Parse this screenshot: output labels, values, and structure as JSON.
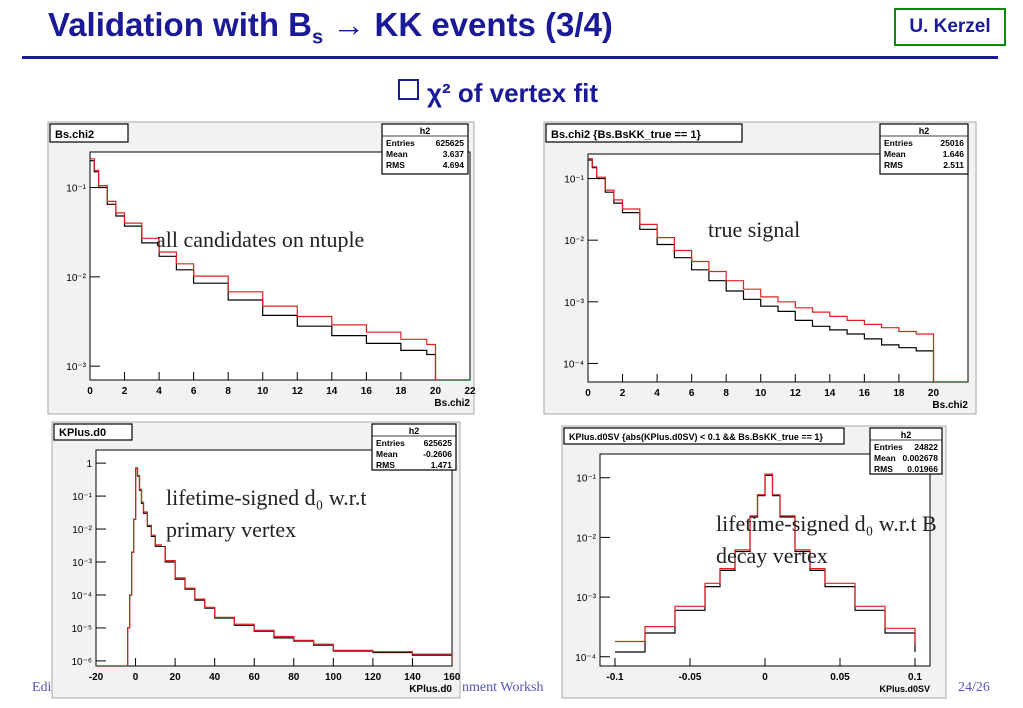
{
  "title": {
    "main": "Validation with B",
    "sub": "s",
    "rest": " → KK events (3/4)"
  },
  "author": "U. Kerzel",
  "subheading": {
    "text": "χ² of vertex fit"
  },
  "footer": {
    "left": "Edi",
    "center": "nment Worksh",
    "page": "24/26"
  },
  "colors": {
    "title": "#1a1a99",
    "author_border": "#0b8a0b",
    "hist_black": "#000000",
    "hist_red": "#e02020",
    "frame_bg": "#f2f2f2"
  },
  "chart_data": [
    {
      "type": "line",
      "title": "Bs.chi2",
      "xlabel": "Bs.chi2",
      "xlim": [
        0,
        22
      ],
      "ylim": [
        0.0007,
        0.25
      ],
      "yscale": "log",
      "xticks": [
        0,
        2,
        4,
        6,
        8,
        10,
        12,
        14,
        16,
        18,
        20,
        22
      ],
      "yticks": [
        {
          "v": 0.1,
          "label": "10⁻¹"
        },
        {
          "v": 0.01,
          "label": "10⁻²"
        },
        {
          "v": 0.001,
          "label": "10⁻³"
        }
      ],
      "stats": {
        "name": "h2",
        "rows": [
          [
            "Entries",
            "625625"
          ],
          [
            "Mean",
            "3.637"
          ],
          [
            "RMS",
            "4.694"
          ]
        ]
      },
      "annotation": "all candidates on ntuple",
      "series": [
        {
          "color": "black",
          "x": [
            0,
            0.25,
            0.5,
            1,
            1.5,
            2,
            3,
            4,
            5,
            6,
            8,
            10,
            12,
            14,
            16,
            18,
            19.5,
            20,
            20.001,
            22
          ],
          "y": [
            0.2,
            0.15,
            0.1,
            0.065,
            0.048,
            0.037,
            0.024,
            0.017,
            0.012,
            0.0085,
            0.0055,
            0.0037,
            0.0028,
            0.0022,
            0.0018,
            0.0015,
            0.00135,
            0.0013,
            0.0007,
            0.0007
          ]
        },
        {
          "color": "red",
          "x": [
            0,
            0.25,
            0.5,
            1,
            1.5,
            2,
            3,
            4,
            5,
            6,
            8,
            10,
            12,
            14,
            16,
            18,
            19.5,
            20,
            20.001,
            22
          ],
          "y": [
            0.21,
            0.155,
            0.105,
            0.07,
            0.052,
            0.04,
            0.027,
            0.019,
            0.014,
            0.0102,
            0.0068,
            0.0047,
            0.0036,
            0.0029,
            0.0024,
            0.002,
            0.00175,
            0.0017,
            0.0007,
            0.0007
          ]
        }
      ]
    },
    {
      "type": "line",
      "title": "Bs.chi2 {Bs.BsKK_true == 1}",
      "xlabel": "Bs.chi2",
      "xlim": [
        0,
        22
      ],
      "ylim": [
        5e-05,
        0.25
      ],
      "yscale": "log",
      "xticks": [
        0,
        2,
        4,
        6,
        8,
        10,
        12,
        14,
        16,
        18,
        20
      ],
      "yticks": [
        {
          "v": 0.1,
          "label": "10⁻¹"
        },
        {
          "v": 0.01,
          "label": "10⁻²"
        },
        {
          "v": 0.001,
          "label": "10⁻³"
        },
        {
          "v": 0.0001,
          "label": "10⁻⁴"
        }
      ],
      "stats": {
        "name": "h2",
        "rows": [
          [
            "Entries",
            "25016"
          ],
          [
            "Mean",
            "1.646"
          ],
          [
            "RMS",
            "2.511"
          ]
        ]
      },
      "annotation": "true signal",
      "series": [
        {
          "color": "black",
          "x": [
            0,
            0.25,
            0.5,
            1,
            1.5,
            2,
            3,
            4,
            5,
            6,
            7,
            8,
            9,
            10,
            11,
            12,
            13,
            14,
            15,
            16,
            17,
            18,
            19,
            20,
            20.001,
            22
          ],
          "y": [
            0.2,
            0.15,
            0.1,
            0.06,
            0.04,
            0.028,
            0.015,
            0.0085,
            0.0052,
            0.0033,
            0.0022,
            0.0015,
            0.0011,
            0.00085,
            0.0007,
            0.0005,
            0.0004,
            0.00035,
            0.0003,
            0.00025,
            0.0002,
            0.00018,
            0.00016,
            0.00015,
            5e-05,
            5e-05
          ]
        },
        {
          "color": "red",
          "x": [
            0,
            0.25,
            0.5,
            1,
            1.5,
            2,
            3,
            4,
            5,
            6,
            7,
            8,
            9,
            10,
            11,
            12,
            13,
            14,
            15,
            16,
            17,
            18,
            19,
            20,
            20.001,
            22
          ],
          "y": [
            0.21,
            0.155,
            0.105,
            0.065,
            0.045,
            0.032,
            0.018,
            0.011,
            0.0068,
            0.0045,
            0.0031,
            0.0022,
            0.0016,
            0.0012,
            0.001,
            0.0008,
            0.00068,
            0.00058,
            0.0005,
            0.00043,
            0.00038,
            0.00033,
            0.0003,
            0.00028,
            5e-05,
            5e-05
          ]
        }
      ]
    },
    {
      "type": "line",
      "title": "KPlus.d0",
      "xlabel": "KPlus.d0",
      "xlim": [
        -20,
        160
      ],
      "ylim": [
        7e-07,
        2.5
      ],
      "yscale": "log",
      "xticks": [
        -20,
        0,
        20,
        40,
        60,
        80,
        100,
        120,
        140,
        160
      ],
      "yticks": [
        {
          "v": 1,
          "label": "1"
        },
        {
          "v": 0.1,
          "label": "10⁻¹"
        },
        {
          "v": 0.01,
          "label": "10⁻²"
        },
        {
          "v": 0.001,
          "label": "10⁻³"
        },
        {
          "v": 0.0001,
          "label": "10⁻⁴"
        },
        {
          "v": 1e-05,
          "label": "10⁻⁵"
        },
        {
          "v": 1e-06,
          "label": "10⁻⁶"
        }
      ],
      "stats": {
        "name": "h2",
        "rows": [
          [
            "Entries",
            "625625"
          ],
          [
            "Mean",
            "-0.2606"
          ],
          [
            "RMS",
            "1.471"
          ]
        ]
      },
      "annotation": "lifetime-signed d₀ w.r.t primary vertex",
      "series": [
        {
          "color": "black",
          "x": [
            -20,
            -6,
            -4,
            -3,
            -2,
            -1,
            0,
            1,
            2,
            3,
            4,
            6,
            8,
            10,
            15,
            20,
            25,
            30,
            35,
            40,
            50,
            60,
            70,
            80,
            90,
            100,
            120,
            140,
            160
          ],
          "y": [
            7e-07,
            7e-07,
            1e-05,
            0.0001,
            0.002,
            0.02,
            0.7,
            0.4,
            0.15,
            0.06,
            0.03,
            0.012,
            0.006,
            0.003,
            0.001,
            0.0003,
            0.00015,
            7e-05,
            4e-05,
            2e-05,
            1.2e-05,
            8e-06,
            5e-06,
            4e-06,
            3e-06,
            2e-06,
            1.8e-06,
            1.5e-06,
            1e-06
          ]
        },
        {
          "color": "red",
          "x": [
            -20,
            -6,
            -4,
            -3,
            -2,
            -1,
            0,
            1,
            2,
            3,
            4,
            6,
            8,
            10,
            15,
            20,
            25,
            30,
            35,
            40,
            50,
            60,
            70,
            80,
            90,
            100,
            120,
            140,
            160
          ],
          "y": [
            7e-07,
            7e-07,
            1e-05,
            0.0001,
            0.002,
            0.02,
            0.72,
            0.42,
            0.16,
            0.065,
            0.033,
            0.013,
            0.0065,
            0.0033,
            0.0011,
            0.00033,
            0.00016,
            7.5e-05,
            4.2e-05,
            2.1e-05,
            1.3e-05,
            8.5e-06,
            5.5e-06,
            4.2e-06,
            3.2e-06,
            2.1e-06,
            1.9e-06,
            1.6e-06,
            1e-06
          ]
        }
      ]
    },
    {
      "type": "line",
      "title": "KPlus.d0SV {abs(KPlus.d0SV) < 0.1 && Bs.BsKK_true == 1}",
      "xlabel": "KPlus.d0SV",
      "xlim": [
        -0.11,
        0.11
      ],
      "ylim": [
        7e-05,
        0.25
      ],
      "yscale": "log",
      "xticks": [
        -0.1,
        -0.05,
        0,
        0.05,
        0.1
      ],
      "yticks": [
        {
          "v": 0.1,
          "label": "10⁻¹"
        },
        {
          "v": 0.01,
          "label": "10⁻²"
        },
        {
          "v": 0.001,
          "label": "10⁻³"
        },
        {
          "v": 0.0001,
          "label": "10⁻⁴"
        }
      ],
      "stats": {
        "name": "h2",
        "rows": [
          [
            "Entries",
            "24822"
          ],
          [
            "Mean",
            "0.002678"
          ],
          [
            "RMS",
            "0.01966"
          ]
        ]
      },
      "annotation": "lifetime-signed d₀ w.r.t B decay vertex",
      "series": [
        {
          "color": "black",
          "x": [
            -0.1,
            -0.08,
            -0.06,
            -0.04,
            -0.03,
            -0.02,
            -0.01,
            -0.005,
            0,
            0.005,
            0.01,
            0.02,
            0.03,
            0.04,
            0.06,
            0.08,
            0.1
          ],
          "y": [
            0.00012,
            0.00025,
            0.0006,
            0.0015,
            0.0028,
            0.0058,
            0.022,
            0.05,
            0.11,
            0.05,
            0.022,
            0.0058,
            0.0028,
            0.0015,
            0.0006,
            0.00025,
            0.00012
          ]
        },
        {
          "color": "red",
          "x": [
            -0.1,
            -0.08,
            -0.06,
            -0.04,
            -0.03,
            -0.02,
            -0.01,
            -0.005,
            0,
            0.005,
            0.01,
            0.02,
            0.03,
            0.04,
            0.06,
            0.08,
            0.1
          ],
          "y": [
            0.00018,
            0.00032,
            0.0007,
            0.0017,
            0.003,
            0.0062,
            0.023,
            0.052,
            0.115,
            0.052,
            0.023,
            0.0062,
            0.003,
            0.0017,
            0.0007,
            0.0003,
            0.00016
          ]
        }
      ]
    }
  ]
}
